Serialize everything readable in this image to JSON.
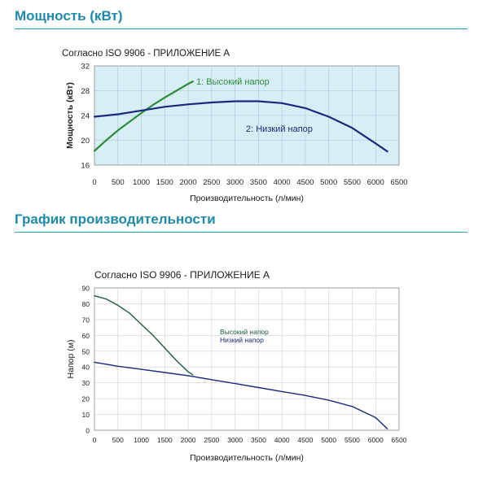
{
  "power_section": {
    "title": "Мощность (кВт)"
  },
  "performance_section": {
    "title": "График производительности"
  },
  "chart_data": [
    {
      "type": "line",
      "title": "Согласно ISO 9906 - ПРИЛОЖЕНИЕ А",
      "xlabel": "Производительность (л/мин)",
      "ylabel": "Мощность (кВт)",
      "xlim": [
        0,
        6500
      ],
      "ylim": [
        16,
        32
      ],
      "xticks": [
        0,
        500,
        1000,
        1500,
        2000,
        2500,
        3000,
        3500,
        4000,
        4500,
        5000,
        5500,
        6000,
        6500
      ],
      "yticks": [
        16,
        20,
        24,
        28,
        32
      ],
      "grid": true,
      "background": "#d8eef6",
      "series": [
        {
          "name": "1: Высокий напор",
          "color": "#2e8b3a",
          "x": [
            0,
            250,
            500,
            750,
            1000,
            1250,
            1500,
            1750,
            2000,
            2100
          ],
          "y": [
            18.3,
            20.0,
            21.6,
            23.0,
            24.4,
            25.7,
            26.9,
            28.0,
            29.1,
            29.5
          ]
        },
        {
          "name": "2: Низкий напор",
          "color": "#1a2a7a",
          "x": [
            0,
            500,
            1000,
            1500,
            2000,
            2500,
            3000,
            3500,
            4000,
            4500,
            5000,
            5500,
            6000,
            6250
          ],
          "y": [
            23.8,
            24.2,
            24.8,
            25.4,
            25.8,
            26.1,
            26.3,
            26.3,
            26.0,
            25.2,
            23.8,
            22.0,
            19.5,
            18.2
          ]
        }
      ]
    },
    {
      "type": "line",
      "title": "Согласно ISO 9906 - ПРИЛОЖЕНИЕ А",
      "xlabel": "Производительность (л/мин)",
      "ylabel": "Напор (м)",
      "xlim": [
        0,
        6500
      ],
      "ylim": [
        0,
        90
      ],
      "xticks": [
        0,
        500,
        1000,
        1500,
        2000,
        2500,
        3000,
        3500,
        4000,
        4500,
        5000,
        5500,
        6000,
        6500
      ],
      "yticks": [
        0,
        10,
        20,
        30,
        40,
        50,
        60,
        70,
        80,
        90
      ],
      "grid": true,
      "background": "#ffffff",
      "series": [
        {
          "name": "Высокий напор",
          "color": "#1e5a3a",
          "x": [
            0,
            250,
            500,
            750,
            1000,
            1250,
            1500,
            1750,
            2000,
            2100
          ],
          "y": [
            85,
            83,
            79,
            74,
            67,
            60,
            52,
            44,
            37,
            35
          ]
        },
        {
          "name": "Низкий напор",
          "color": "#1a2a7a",
          "x": [
            0,
            500,
            1000,
            1500,
            2000,
            2500,
            3000,
            3500,
            4000,
            4500,
            5000,
            5500,
            6000,
            6250
          ],
          "y": [
            43,
            40.5,
            38.5,
            36.5,
            34.5,
            32,
            29.5,
            27,
            24.5,
            22,
            19,
            15,
            8,
            1
          ]
        }
      ]
    }
  ]
}
